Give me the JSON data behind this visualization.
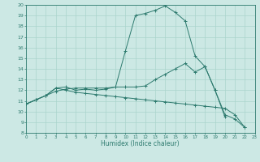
{
  "title": "",
  "xlabel": "Humidex (Indice chaleur)",
  "background_color": "#cce8e4",
  "grid_color": "#aad4cc",
  "line_color": "#2d7a6e",
  "xlim": [
    0,
    23
  ],
  "ylim": [
    8,
    20
  ],
  "xticks": [
    0,
    1,
    2,
    3,
    4,
    5,
    6,
    7,
    8,
    9,
    10,
    11,
    12,
    13,
    14,
    15,
    16,
    17,
    18,
    19,
    20,
    21,
    22,
    23
  ],
  "yticks": [
    8,
    9,
    10,
    11,
    12,
    13,
    14,
    15,
    16,
    17,
    18,
    19,
    20
  ],
  "curve1_x": [
    0,
    1,
    2,
    3,
    4,
    5,
    6,
    7,
    8,
    9,
    10,
    11,
    12,
    13,
    14,
    15,
    16,
    17,
    18,
    19,
    20,
    21,
    22
  ],
  "curve1_y": [
    10.7,
    11.1,
    11.5,
    11.9,
    12.1,
    12.2,
    12.2,
    12.2,
    12.2,
    12.3,
    15.7,
    19.0,
    19.2,
    19.5,
    19.9,
    19.3,
    18.5,
    15.2,
    14.2,
    12.0,
    9.7,
    9.3,
    8.5
  ],
  "curve2_x": [
    0,
    1,
    2,
    3,
    4,
    5,
    6,
    7,
    8,
    9,
    10,
    11,
    12,
    13,
    14,
    15,
    16,
    17,
    18,
    19,
    20
  ],
  "curve2_y": [
    10.7,
    11.1,
    11.5,
    12.2,
    12.3,
    12.0,
    12.1,
    12.0,
    12.1,
    12.3,
    12.3,
    12.3,
    12.4,
    13.0,
    13.5,
    14.0,
    14.5,
    13.7,
    14.2,
    12.0,
    9.5
  ],
  "curve3_x": [
    0,
    1,
    2,
    3,
    4,
    5,
    6,
    7,
    8,
    9,
    10,
    11,
    12,
    13,
    14,
    15,
    16,
    17,
    18,
    19,
    20,
    21,
    22
  ],
  "curve3_y": [
    10.7,
    11.1,
    11.5,
    12.2,
    12.0,
    11.8,
    11.7,
    11.6,
    11.5,
    11.4,
    11.3,
    11.2,
    11.1,
    11.0,
    10.9,
    10.8,
    10.7,
    10.6,
    10.5,
    10.4,
    10.3,
    9.7,
    8.5
  ]
}
